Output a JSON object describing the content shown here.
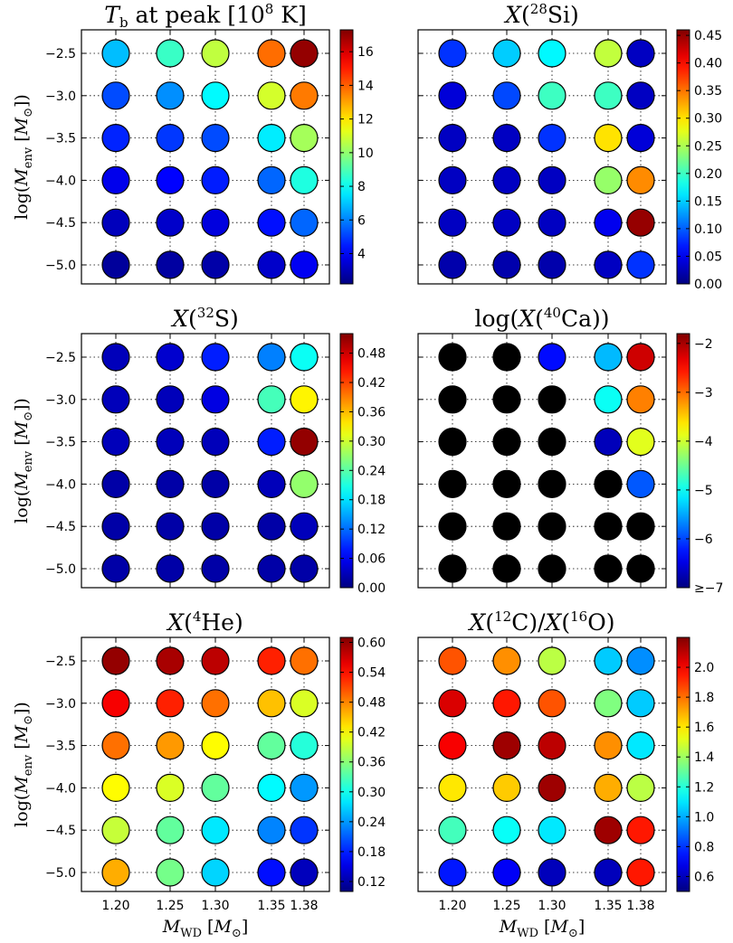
{
  "chart_data": [
    {
      "type": "scatter",
      "title": "T_b at peak [10^8 K]",
      "ylabel": "log(M_env [M_sun])",
      "xlabel": "",
      "x": [
        1.2,
        1.25,
        1.3,
        1.35,
        1.38
      ],
      "y": [
        -2.5,
        -3.0,
        -3.5,
        -4.0,
        -4.5,
        -5.0
      ],
      "colorbar": {
        "min": 2.2,
        "max": 17.3,
        "ticks": [
          "4",
          "6",
          "8",
          "10",
          "12",
          "14",
          "16"
        ]
      },
      "values": [
        [
          6.9,
          8.7,
          10.7,
          13.8,
          17.0
        ],
        [
          5.2,
          6.2,
          7.8,
          11.0,
          13.6
        ],
        [
          4.6,
          4.9,
          5.2,
          7.6,
          10.3
        ],
        [
          3.8,
          4.1,
          4.5,
          5.6,
          8.3
        ],
        [
          3.1,
          3.3,
          3.6,
          4.3,
          5.6
        ],
        [
          2.6,
          2.7,
          2.8,
          3.3,
          3.9
        ]
      ]
    },
    {
      "type": "scatter",
      "title": "X(28Si)",
      "ylabel": "",
      "xlabel": "",
      "x": [
        1.2,
        1.25,
        1.3,
        1.35,
        1.38
      ],
      "y": [
        -2.5,
        -3.0,
        -3.5,
        -4.0,
        -4.5,
        -5.0
      ],
      "colorbar": {
        "min": 0.0,
        "max": 0.46,
        "ticks": [
          "0.00",
          "0.05",
          "0.10",
          "0.15",
          "0.20",
          "0.25",
          "0.30",
          "0.35",
          "0.40",
          "0.45"
        ]
      },
      "values": [
        [
          0.08,
          0.15,
          0.17,
          0.26,
          0.03
        ],
        [
          0.04,
          0.09,
          0.2,
          0.2,
          0.03
        ],
        [
          0.03,
          0.03,
          0.08,
          0.3,
          0.04
        ],
        [
          0.03,
          0.03,
          0.03,
          0.24,
          0.34
        ],
        [
          0.03,
          0.03,
          0.03,
          0.05,
          0.45
        ],
        [
          0.02,
          0.02,
          0.02,
          0.03,
          0.08
        ]
      ]
    },
    {
      "type": "scatter",
      "title": "X(32S)",
      "ylabel": "log(M_env [M_sun])",
      "xlabel": "",
      "x": [
        1.2,
        1.25,
        1.3,
        1.35,
        1.38
      ],
      "y": [
        -2.5,
        -3.0,
        -3.5,
        -4.0,
        -4.5,
        -5.0
      ],
      "colorbar": {
        "min": 0.0,
        "max": 0.52,
        "ticks": [
          "0.00",
          "0.06",
          "0.12",
          "0.18",
          "0.24",
          "0.30",
          "0.36",
          "0.42",
          "0.48"
        ]
      },
      "values": [
        [
          0.03,
          0.04,
          0.08,
          0.13,
          0.2
        ],
        [
          0.03,
          0.03,
          0.05,
          0.23,
          0.33
        ],
        [
          0.03,
          0.03,
          0.03,
          0.08,
          0.51
        ],
        [
          0.02,
          0.02,
          0.02,
          0.03,
          0.27
        ],
        [
          0.02,
          0.02,
          0.02,
          0.02,
          0.03
        ],
        [
          0.02,
          0.02,
          0.02,
          0.02,
          0.02
        ]
      ]
    },
    {
      "type": "scatter",
      "title": "log(X(40Ca))",
      "ylabel": "",
      "xlabel": "",
      "x": [
        1.2,
        1.25,
        1.3,
        1.35,
        1.38
      ],
      "y": [
        -2.5,
        -3.0,
        -3.5,
        -4.0,
        -4.5,
        -5.0
      ],
      "colorbar": {
        "min": -7.0,
        "max": -1.8,
        "ticks": [
          "≥−7",
          "−6",
          "−5",
          "−4",
          "−3",
          "−2"
        ]
      },
      "values": [
        [
          null,
          null,
          -6.3,
          -5.4,
          -2.2
        ],
        [
          null,
          null,
          null,
          -5.0,
          -3.1
        ],
        [
          null,
          null,
          null,
          -6.7,
          -3.9
        ],
        [
          null,
          null,
          null,
          null,
          -5.9
        ],
        [
          null,
          null,
          null,
          null,
          null
        ],
        [
          null,
          null,
          null,
          null,
          null
        ]
      ],
      "below_min_color": "#000000"
    },
    {
      "type": "scatter",
      "title": "X(4He)",
      "ylabel": "log(M_env [M_sun])",
      "xlabel": "M_WD [M_sun]",
      "x": [
        1.2,
        1.25,
        1.3,
        1.35,
        1.38
      ],
      "y": [
        -2.5,
        -3.0,
        -3.5,
        -4.0,
        -4.5,
        -5.0
      ],
      "x_tick_labels": [
        "1.20",
        "1.25",
        "1.30",
        "1.35",
        "1.38"
      ],
      "colorbar": {
        "min": 0.1,
        "max": 0.61,
        "ticks": [
          "0.12",
          "0.18",
          "0.24",
          "0.30",
          "0.36",
          "0.42",
          "0.48",
          "0.54",
          "0.60"
        ]
      },
      "values": [
        [
          0.6,
          0.59,
          0.58,
          0.53,
          0.49
        ],
        [
          0.55,
          0.53,
          0.49,
          0.45,
          0.4
        ],
        [
          0.49,
          0.47,
          0.42,
          0.34,
          0.31
        ],
        [
          0.42,
          0.4,
          0.34,
          0.29,
          0.24
        ],
        [
          0.39,
          0.34,
          0.28,
          0.23,
          0.19
        ],
        [
          0.46,
          0.35,
          0.27,
          0.17,
          0.13
        ]
      ]
    },
    {
      "type": "scatter",
      "title": "X(12C)/X(16O)",
      "ylabel": "",
      "xlabel": "M_WD [M_sun]",
      "x": [
        1.2,
        1.25,
        1.3,
        1.35,
        1.38
      ],
      "y": [
        -2.5,
        -3.0,
        -3.5,
        -4.0,
        -4.5,
        -5.0
      ],
      "x_tick_labels": [
        "1.20",
        "1.25",
        "1.30",
        "1.35",
        "1.38"
      ],
      "colorbar": {
        "min": 0.5,
        "max": 2.2,
        "ticks": [
          "0.6",
          "0.8",
          "1.0",
          "1.2",
          "1.4",
          "1.6",
          "1.8",
          "2.0"
        ]
      },
      "values": [
        [
          1.85,
          1.75,
          1.45,
          1.05,
          0.95
        ],
        [
          2.05,
          1.95,
          1.85,
          1.35,
          1.05
        ],
        [
          2.0,
          2.15,
          2.1,
          1.75,
          1.1
        ],
        [
          1.6,
          1.65,
          2.15,
          1.7,
          1.45
        ],
        [
          1.25,
          1.15,
          1.1,
          2.15,
          1.95
        ],
        [
          0.75,
          0.7,
          0.6,
          0.6,
          1.95
        ]
      ]
    }
  ]
}
